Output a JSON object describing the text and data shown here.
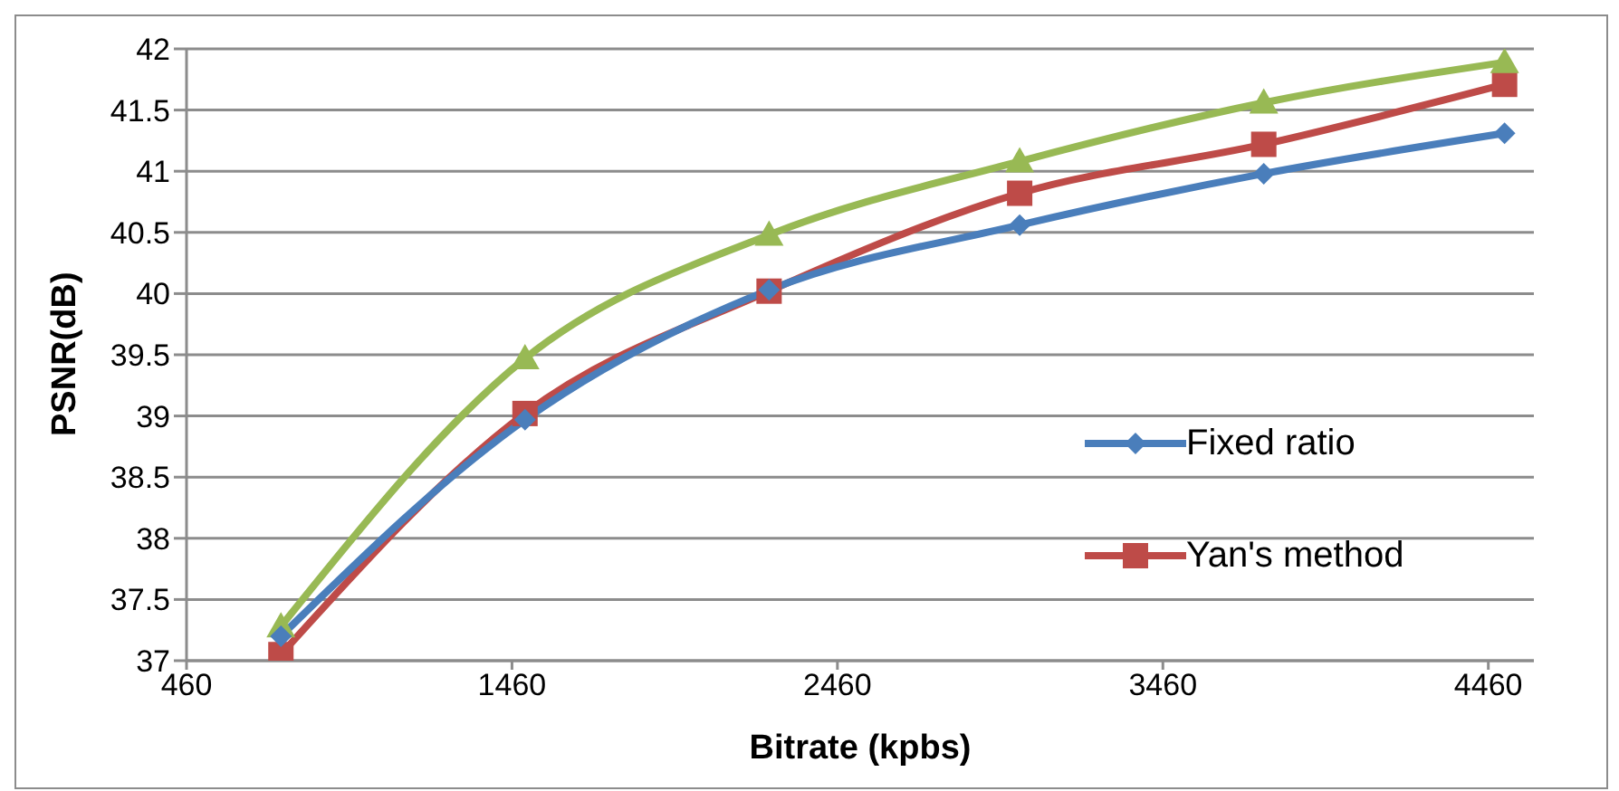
{
  "chart_data": {
    "type": "line",
    "xlabel": "Bitrate (kpbs)",
    "ylabel": "PSNR(dB)",
    "x": [
      750,
      1500,
      2250,
      3020,
      3770,
      4510
    ],
    "xlim": [
      460,
      4600
    ],
    "xticks": [
      460,
      1460,
      2460,
      3460,
      4460
    ],
    "ylim": [
      37,
      42
    ],
    "yticks": [
      37,
      37.5,
      38,
      38.5,
      39,
      39.5,
      40,
      40.5,
      41,
      41.5,
      42
    ],
    "grid": "y",
    "legend": "right",
    "line_style": "solid",
    "series": [
      {
        "name": "Fixed ratio",
        "color": "#4a7ebb",
        "marker": "diamond",
        "values": [
          37.2,
          38.97,
          40.03,
          40.56,
          40.98,
          41.31
        ]
      },
      {
        "name": "Yan's method",
        "color": "#be4b48",
        "marker": "square",
        "values": [
          37.05,
          39.02,
          40.02,
          40.82,
          41.22,
          41.71
        ]
      },
      {
        "color": "#98b954",
        "marker": "triangle",
        "values": [
          37.28,
          39.47,
          40.48,
          41.08,
          41.56,
          41.89
        ]
      }
    ]
  }
}
